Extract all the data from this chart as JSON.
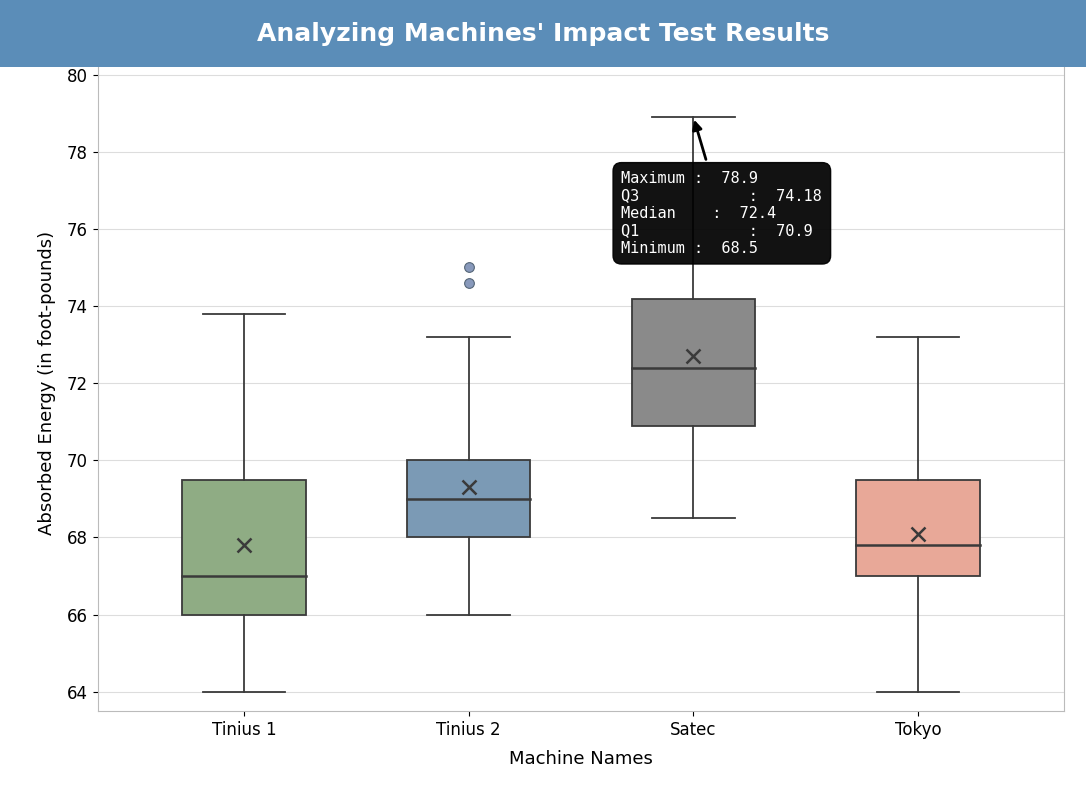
{
  "title": "Analyzing Machines' Impact Test Results",
  "xlabel": "Machine Names",
  "ylabel": "Absorbed Energy (in foot-pounds)",
  "categories": [
    "Tinius 1",
    "Tinius 2",
    "Satec",
    "Tokyo"
  ],
  "boxes": [
    {
      "label": "Tinius 1",
      "min": 64.0,
      "q1": 66.0,
      "median": 67.0,
      "q3": 69.5,
      "max": 73.8,
      "mean": 67.8,
      "outliers": [],
      "color": "#8fac84",
      "edge_color": "#3a3a3a"
    },
    {
      "label": "Tinius 2",
      "min": 66.0,
      "q1": 68.0,
      "median": 69.0,
      "q3": 70.0,
      "max": 73.2,
      "mean": 69.3,
      "outliers": [
        74.6,
        75.0
      ],
      "color": "#7b9ab5",
      "edge_color": "#3a3a3a"
    },
    {
      "label": "Satec",
      "min": 68.5,
      "q1": 70.9,
      "median": 72.4,
      "q3": 74.18,
      "max": 78.9,
      "mean": 72.7,
      "outliers": [],
      "color": "#8a8a8a",
      "edge_color": "#3a3a3a"
    },
    {
      "label": "Tokyo",
      "min": 64.0,
      "q1": 67.0,
      "median": 67.8,
      "q3": 69.5,
      "max": 73.2,
      "mean": 68.1,
      "outliers": [],
      "color": "#e8a898",
      "edge_color": "#3a3a3a"
    }
  ],
  "ylim": [
    63.5,
    80.5
  ],
  "yticks": [
    64,
    66,
    68,
    70,
    72,
    74,
    76,
    78,
    80
  ],
  "background_color": "#ffffff",
  "title_bg_color": "#5b8db8",
  "title_text_color": "#ffffff",
  "title_fontsize": 18,
  "axis_fontsize": 13,
  "tick_fontsize": 12,
  "tooltip_text": "Maximum :  78.9\nQ3            :  74.18\nMedian    :  72.4\nQ1            :  70.9\nMinimum :  68.5",
  "box_width": 0.55,
  "positions": [
    1,
    2,
    3,
    4
  ]
}
